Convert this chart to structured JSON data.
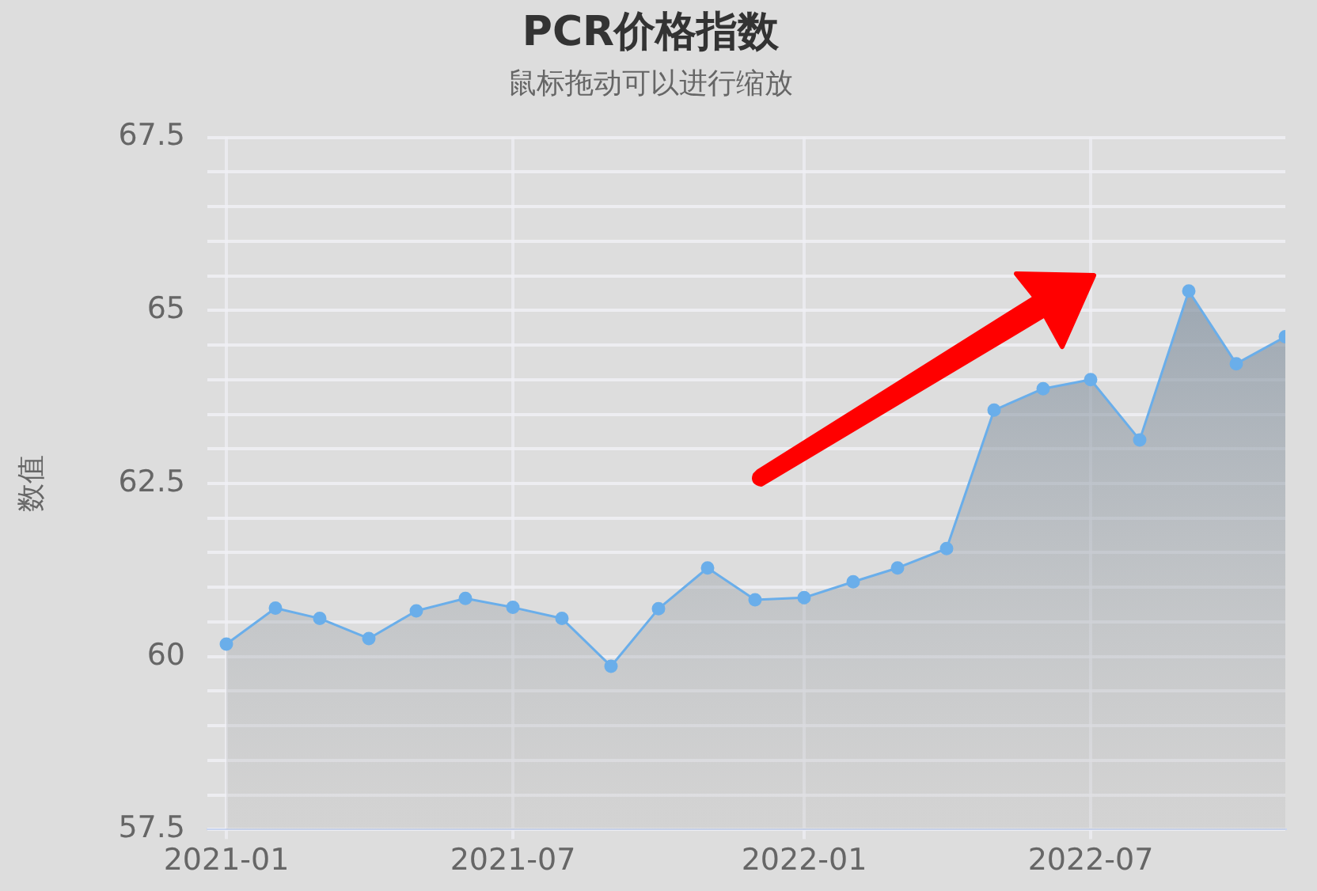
{
  "chart_data": {
    "type": "area",
    "title": "PCR价格指数",
    "subtitle": "鼠标拖动可以进行缩放",
    "ylabel": "数值",
    "x": [
      "2021-01",
      "2021-02",
      "2021-03",
      "2021-04",
      "2021-05",
      "2021-06",
      "2021-07",
      "2021-08",
      "2021-09",
      "2021-10",
      "2021-11",
      "2021-12",
      "2022-01",
      "2022-02",
      "2022-03",
      "2022-04",
      "2022-05",
      "2022-06",
      "2022-07",
      "2022-08",
      "2022-09",
      "2022-10",
      "2022-11"
    ],
    "series": [
      {
        "color": "#6aaeea",
        "values": [
          60.18,
          60.7,
          60.55,
          60.26,
          60.66,
          60.84,
          60.71,
          60.55,
          59.86,
          60.69,
          61.28,
          60.82,
          60.85,
          61.08,
          61.28,
          61.56,
          63.56,
          63.87,
          64.0,
          63.13,
          65.28,
          64.23,
          64.62
        ]
      }
    ],
    "xlim": [
      "2020-12-20",
      "2022-11"
    ],
    "xticks": [
      "2021-01",
      "2021-07",
      "2022-01",
      "2022-07"
    ],
    "ylim": [
      57.5,
      67.5
    ],
    "yticks": [
      57.5,
      {
        "value": 58,
        "label": null
      },
      {
        "value": 58.5,
        "label": null
      },
      {
        "value": 59,
        "label": null
      },
      {
        "value": 59.5,
        "label": null
      },
      60,
      {
        "value": 60.5,
        "label": null
      },
      {
        "value": 61,
        "label": null
      },
      {
        "value": 61.5,
        "label": null
      },
      {
        "value": 62,
        "label": null
      },
      62.5,
      {
        "value": 63,
        "label": null
      },
      {
        "value": 63.5,
        "label": null
      },
      {
        "value": 64,
        "label": null
      },
      {
        "value": 64.5,
        "label": null
      },
      65,
      {
        "value": 65.5,
        "label": null
      },
      {
        "value": 66,
        "label": null
      },
      {
        "value": 66.5,
        "label": null
      },
      {
        "value": 67,
        "label": null
      },
      67.5
    ],
    "grid": true,
    "legend": false,
    "marker": "circle",
    "line_style": "solid"
  }
}
